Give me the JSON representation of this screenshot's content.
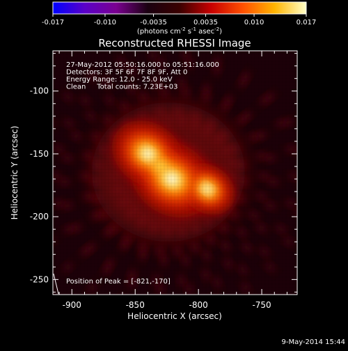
{
  "colorbar": {
    "tick_labels": [
      "-0.017",
      "-0.010",
      "-0.0035",
      "0.0035",
      "0.010",
      "0.017"
    ],
    "tick_values": [
      -0.017,
      -0.01,
      -0.0035,
      0.0035,
      0.01,
      0.017
    ],
    "range": [
      -0.017,
      0.017
    ],
    "label": "(photons cm",
    "label_exp1": "-2",
    "label_mid": " s",
    "label_exp2": "-1",
    "label_mid2": " asec",
    "label_exp3": "-2",
    "label_end": ")",
    "colors": [
      "#0000ff",
      "#5a00c8",
      "#7a0090",
      "#1a0010",
      "#3a0000",
      "#c80000",
      "#ff5000",
      "#ffb400",
      "#ffffc8"
    ]
  },
  "chart_data": {
    "type": "heatmap",
    "title": "Reconstructed RHESSI Image",
    "xlabel": "Heliocentric X (arcsec)",
    "ylabel": "Heliocentric Y (arcsec)",
    "xlim": [
      -915,
      -722
    ],
    "ylim": [
      -262,
      -68
    ],
    "x_ticks": [
      -900,
      -850,
      -800,
      -750
    ],
    "y_ticks": [
      -100,
      -150,
      -200,
      -250
    ],
    "info_lines": [
      "27-May-2012 05:50:16.000 to 05:51:16.000",
      "Detectors: 3F 5F 6F 7F 8F 9F, Att 0",
      "Energy Range: 12.0 - 25.0 keV",
      "Clean     Total counts: 7.23E+03"
    ],
    "peak_text": "Position of Peak = [-821,-170]",
    "peak_position": [
      -821,
      -170
    ],
    "sources": [
      {
        "x": -821,
        "y": -170,
        "intensity": 1.0
      },
      {
        "x": -840,
        "y": -150,
        "intensity": 0.75
      },
      {
        "x": -793,
        "y": -178,
        "intensity": 0.45
      },
      {
        "x": -830,
        "y": -160,
        "intensity": 0.35
      }
    ],
    "grid": false
  },
  "footer": {
    "date_text": "9-May-2014 15:44"
  }
}
